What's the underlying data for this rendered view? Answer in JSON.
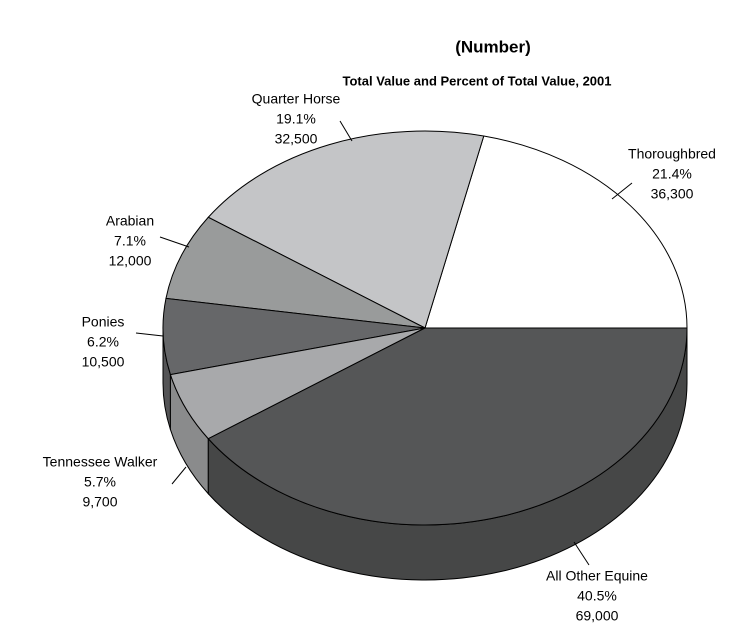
{
  "chart_data": {
    "type": "pie",
    "title": "(Number)",
    "subtitle": "Total Value and Percent of Total Value, 2001",
    "categories": [
      "Thoroughbred",
      "Quarter Horse",
      "Arabian",
      "Ponies",
      "Tennessee Walker",
      "All Other Equine"
    ],
    "values": [
      21.4,
      19.1,
      7.1,
      6.2,
      5.7,
      40.5
    ],
    "value_labels": [
      "21.4%",
      "19.1%",
      "7.1%",
      "6.2%",
      "5.7%",
      "40.5%"
    ],
    "counts": [
      36300,
      32500,
      12000,
      10500,
      9700,
      69000
    ],
    "count_labels": [
      "36,300",
      "32,500",
      "12,000",
      "10,500",
      "9,700",
      "69,000"
    ],
    "colors": [
      "#ffffff",
      "#c4c5c7",
      "#999b9b",
      "#666769",
      "#a8a9ab",
      "#555657"
    ]
  }
}
